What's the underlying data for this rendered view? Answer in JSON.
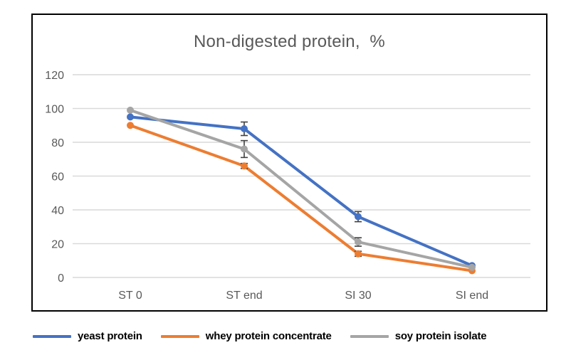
{
  "chart_data": {
    "type": "line",
    "title": "Non-digested protein,  %",
    "categories": [
      "ST 0",
      "ST end",
      "SI 30",
      "SI end"
    ],
    "series": [
      {
        "name": "yeast protein",
        "color": "#4472C4",
        "values": [
          95,
          88,
          36,
          7
        ],
        "errors": [
          0,
          4,
          3,
          0
        ]
      },
      {
        "name": "whey protein concentrate",
        "color": "#ED7D31",
        "values": [
          90,
          66,
          14,
          4
        ],
        "errors": [
          0,
          1.5,
          1.5,
          0
        ]
      },
      {
        "name": "soy protein isolate",
        "color": "#A5A5A5",
        "values": [
          99,
          76,
          21,
          6
        ],
        "errors": [
          0,
          5,
          2.5,
          0
        ]
      }
    ],
    "ylim": [
      0,
      120
    ],
    "ytick_step": 20,
    "yticks": [
      0,
      20,
      40,
      60,
      80,
      100,
      120
    ],
    "grid": true,
    "legend_position": "bottom",
    "marker": "circle",
    "colors": {
      "gridline": "#D9D9D9",
      "axis_text": "#595959",
      "title_text": "#595959",
      "error_bar": "#404040",
      "frame_border": "#000000"
    }
  }
}
